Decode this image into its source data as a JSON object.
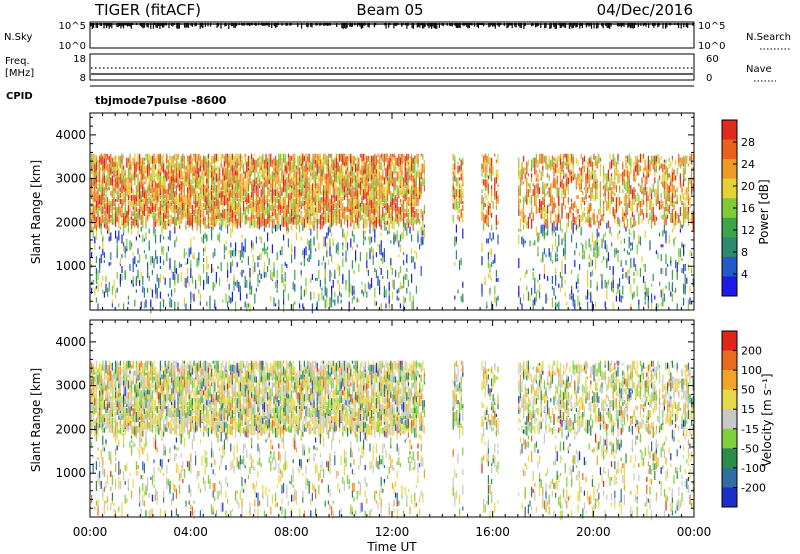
{
  "header": {
    "left": "TIGER (fitACF)",
    "center": "Beam 05",
    "right": "04/Dec/2016"
  },
  "strip_panels": {
    "nsky": {
      "label": "N.Sky",
      "ticks": [
        "10^5",
        "10^0"
      ]
    },
    "nsearch": {
      "label": "N.Search"
    },
    "freq": {
      "label_line1": "Freq.",
      "label_line2": "[MHz]",
      "ticks": [
        "18",
        "8"
      ]
    },
    "nave": {
      "label": "Nave",
      "ticks": [
        "60",
        "0"
      ]
    },
    "cpid": {
      "label": "CPID",
      "value": "tbjmode7pulse  -8600"
    }
  },
  "x_axis": {
    "label": "Time UT",
    "tick_labels": [
      "00:00",
      "04:00",
      "08:00",
      "12:00",
      "16:00",
      "20:00",
      "00:00"
    ],
    "range_hours": [
      0,
      24
    ]
  },
  "chart_data": [
    {
      "type": "heatmap",
      "title": "",
      "xlabel": "Time UT",
      "ylabel": "Slant Range [km]",
      "x_range_hours": [
        0,
        24
      ],
      "ylim": [
        0,
        4500
      ],
      "y_ticks": [
        1000,
        2000,
        3000,
        4000
      ],
      "data_gaps_hours": [
        [
          13.3,
          14.4
        ],
        [
          14.8,
          15.5
        ],
        [
          16.2,
          17.0
        ]
      ],
      "colorbar": {
        "label": "Power [dB]",
        "ticks": [
          "4",
          "8",
          "12",
          "16",
          "20",
          "24",
          "28"
        ],
        "range": [
          0,
          32
        ],
        "colors": [
          "#1c1ce6",
          "#2459c8",
          "#2d8a6e",
          "#3fa34a",
          "#7fcc3a",
          "#e4d233",
          "#ef9a22",
          "#e8621c",
          "#e02a1c"
        ]
      }
    },
    {
      "type": "heatmap",
      "title": "",
      "xlabel": "Time UT",
      "ylabel": "Slant Range [km]",
      "x_range_hours": [
        0,
        24
      ],
      "ylim": [
        0,
        4500
      ],
      "y_ticks": [
        1000,
        2000,
        3000,
        4000
      ],
      "data_gaps_hours": [
        [
          13.3,
          14.4
        ],
        [
          14.8,
          15.5
        ],
        [
          16.2,
          17.0
        ]
      ],
      "colorbar": {
        "label": "Velocity [m s⁻¹]",
        "ticks": [
          "200",
          "100",
          "50",
          "15",
          "-15",
          "-50",
          "-100",
          "-200"
        ],
        "colors": [
          "#1c2ec8",
          "#2f6e9e",
          "#2e8b4a",
          "#7fd13b",
          "#c8c8c8",
          "#e8d84a",
          "#f0a526",
          "#ea6a1e",
          "#e0241c"
        ]
      }
    }
  ]
}
